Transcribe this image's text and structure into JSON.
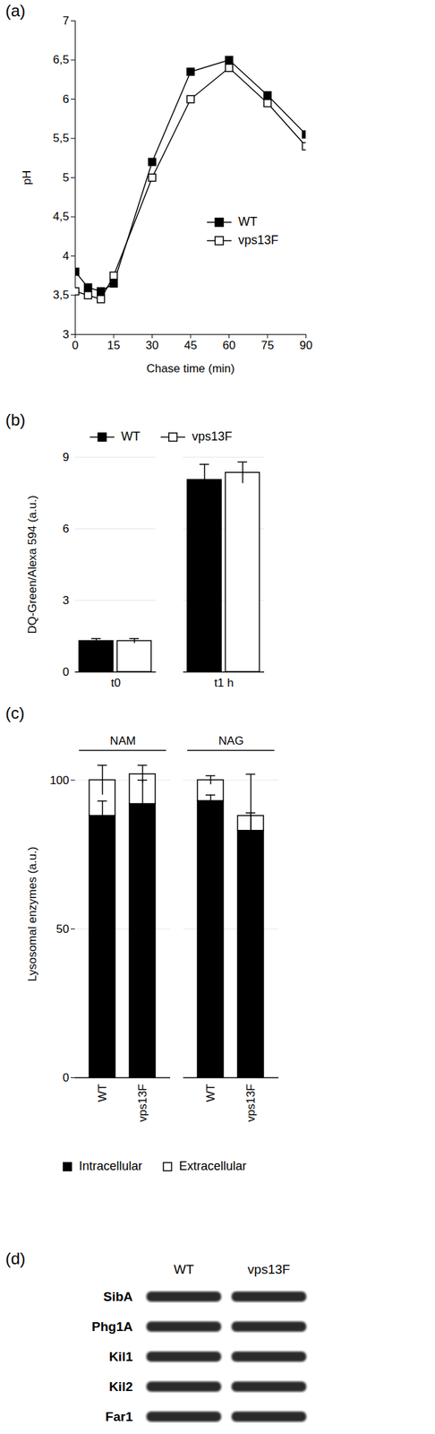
{
  "chart_data": [
    {
      "panel": "(a)",
      "type": "line",
      "x": [
        0,
        5,
        10,
        15,
        30,
        45,
        60,
        75,
        90
      ],
      "series": [
        {
          "name": "WT",
          "color": "#000000",
          "marker": "square",
          "values": [
            3.8,
            3.6,
            3.55,
            3.65,
            5.2,
            6.35,
            6.5,
            6.05,
            5.55
          ]
        },
        {
          "name": "vps13F",
          "color": "#ffffff",
          "marker": "square",
          "values": [
            3.55,
            3.5,
            3.45,
            3.75,
            5.0,
            6.0,
            6.4,
            5.95,
            5.4
          ]
        }
      ],
      "x_label": "Chase time (min)",
      "y_label": "pH",
      "xlim": [
        0,
        90
      ],
      "xticks": [
        0,
        15,
        30,
        45,
        60,
        75,
        90
      ],
      "ylim": [
        3,
        7
      ],
      "yticks": [
        3,
        {
          "value": 3.5,
          "label": "3,5"
        },
        4,
        {
          "value": 4.5,
          "label": "4,5"
        },
        5,
        {
          "value": 5.5,
          "label": "5,5"
        },
        6,
        {
          "value": 6.5,
          "label": "6,5"
        },
        7
      ],
      "legend": "bottom-right"
    },
    {
      "panel": "(b)",
      "type": "bar",
      "categories": [
        "t0",
        "t1 h"
      ],
      "series": [
        {
          "name": "WT",
          "color": "#000000",
          "values": [
            1.3,
            8.05
          ],
          "errors": [
            0.1,
            0.65
          ]
        },
        {
          "name": "vps13F",
          "color": "#ffffff",
          "values": [
            1.3,
            8.35
          ],
          "errors": [
            0.1,
            0.45
          ]
        }
      ],
      "y_label": "DQ-Green/Alexa 594 (a.u.)",
      "ylim": [
        0,
        9
      ],
      "yticks": [
        0,
        3,
        6,
        9
      ],
      "grid": true,
      "legend": "top"
    },
    {
      "panel": "(c)",
      "type": "bar",
      "stacked": true,
      "categories": [
        "WT",
        "vps13F",
        "WT",
        "vps13F"
      ],
      "groups": [
        "NAM",
        "NAM",
        "NAG",
        "NAG"
      ],
      "series": [
        {
          "name": "Intracellular",
          "color": "#000000",
          "values": [
            88,
            92,
            93,
            83
          ],
          "errors": [
            5,
            8,
            2,
            6
          ]
        },
        {
          "name": "Extracellular",
          "color": "#ffffff",
          "values": [
            12,
            10,
            7,
            5
          ],
          "errors": [
            5,
            3,
            1.5,
            14
          ]
        }
      ],
      "y_label": "Lysosomal enzymes (a.u.)",
      "ylim": [
        0,
        110
      ],
      "yticks": [
        0,
        50,
        100
      ],
      "grid": true,
      "legend": "bottom"
    }
  ],
  "blot": {
    "panel": "(d)",
    "columns": [
      "WT",
      "vps13F"
    ],
    "rows": [
      "SibA",
      "Phg1A",
      "Kil1",
      "Kil2",
      "Far1"
    ]
  }
}
